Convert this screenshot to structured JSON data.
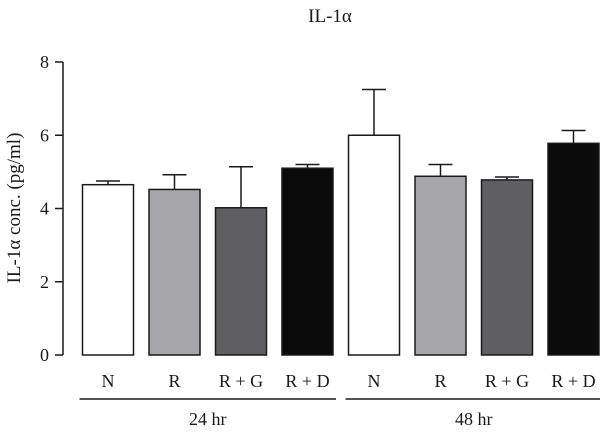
{
  "chart_data": {
    "type": "bar",
    "title": "IL-1α",
    "ylabel": "IL-1α conc. (pg/ml)",
    "ylim": [
      0,
      8
    ],
    "yticks": [
      0,
      2,
      4,
      6,
      8
    ],
    "groups": [
      {
        "label": "24 hr",
        "bars": [
          {
            "category": "N",
            "value": 4.65,
            "error": 0.1,
            "color": "#ffffff"
          },
          {
            "category": "R",
            "value": 4.52,
            "error": 0.4,
            "color": "#a6a6a9"
          },
          {
            "category": "R + G",
            "value": 4.02,
            "error": 1.12,
            "color": "#5f5f61"
          },
          {
            "category": "R + D",
            "value": 5.1,
            "error": 0.1,
            "color": "#0b0b0b"
          }
        ]
      },
      {
        "label": "48 hr",
        "bars": [
          {
            "category": "N",
            "value": 6.0,
            "error": 1.25,
            "color": "#ffffff"
          },
          {
            "category": "R",
            "value": 4.88,
            "error": 0.32,
            "color": "#a6a6a9"
          },
          {
            "category": "R + G",
            "value": 4.78,
            "error": 0.08,
            "color": "#5f5f61"
          },
          {
            "category": "R + D",
            "value": 5.78,
            "error": 0.35,
            "color": "#0b0b0b"
          }
        ]
      }
    ]
  }
}
